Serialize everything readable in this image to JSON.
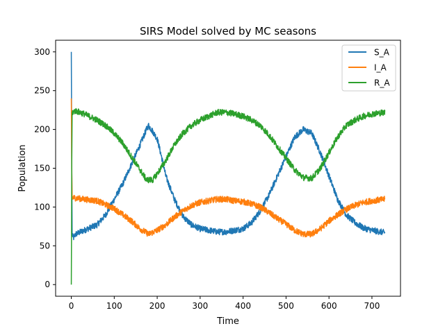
{
  "chart_data": {
    "type": "line",
    "title": "SIRS Model solved by MC seasons",
    "xlabel": "Time",
    "ylabel": "Population",
    "xlim": [
      -36.5,
      766.5
    ],
    "ylim": [
      -15,
      315
    ],
    "xticks": [
      0,
      100,
      200,
      300,
      400,
      500,
      600,
      700
    ],
    "yticks": [
      0,
      50,
      100,
      150,
      200,
      250,
      300
    ],
    "grid": false,
    "legend_position": "top-right",
    "noise_amplitude": 4,
    "series": [
      {
        "name": "S_A",
        "color": "#1f77b4",
        "points": [
          [
            0,
            300
          ],
          [
            0.5,
            240
          ],
          [
            1,
            165
          ],
          [
            2,
            65
          ],
          [
            5,
            60
          ],
          [
            10,
            65
          ],
          [
            30,
            70
          ],
          [
            60,
            77
          ],
          [
            80,
            90
          ],
          [
            100,
            110
          ],
          [
            120,
            130
          ],
          [
            140,
            155
          ],
          [
            160,
            180
          ],
          [
            175,
            200
          ],
          [
            180,
            205
          ],
          [
            190,
            197
          ],
          [
            200,
            188
          ],
          [
            210,
            165
          ],
          [
            220,
            140
          ],
          [
            230,
            125
          ],
          [
            240,
            110
          ],
          [
            260,
            88
          ],
          [
            280,
            77
          ],
          [
            300,
            72
          ],
          [
            320,
            70
          ],
          [
            340,
            68
          ],
          [
            360,
            68
          ],
          [
            380,
            70
          ],
          [
            400,
            72
          ],
          [
            420,
            80
          ],
          [
            440,
            95
          ],
          [
            460,
            115
          ],
          [
            480,
            140
          ],
          [
            500,
            165
          ],
          [
            520,
            190
          ],
          [
            540,
            200
          ],
          [
            560,
            195
          ],
          [
            580,
            170
          ],
          [
            600,
            140
          ],
          [
            620,
            110
          ],
          [
            640,
            90
          ],
          [
            660,
            80
          ],
          [
            680,
            73
          ],
          [
            700,
            70
          ],
          [
            730,
            67
          ]
        ]
      },
      {
        "name": "I_A",
        "color": "#ff7f0e",
        "points": [
          [
            0,
            240
          ],
          [
            0.5,
            200
          ],
          [
            1,
            150
          ],
          [
            2,
            112
          ],
          [
            5,
            112
          ],
          [
            30,
            110
          ],
          [
            60,
            108
          ],
          [
            80,
            103
          ],
          [
            100,
            98
          ],
          [
            120,
            90
          ],
          [
            140,
            82
          ],
          [
            160,
            72
          ],
          [
            180,
            65
          ],
          [
            200,
            70
          ],
          [
            220,
            77
          ],
          [
            240,
            87
          ],
          [
            260,
            95
          ],
          [
            280,
            102
          ],
          [
            300,
            106
          ],
          [
            320,
            108
          ],
          [
            340,
            110
          ],
          [
            360,
            110
          ],
          [
            380,
            108
          ],
          [
            400,
            107
          ],
          [
            420,
            104
          ],
          [
            440,
            100
          ],
          [
            460,
            93
          ],
          [
            480,
            85
          ],
          [
            500,
            78
          ],
          [
            520,
            70
          ],
          [
            540,
            65
          ],
          [
            560,
            65
          ],
          [
            580,
            72
          ],
          [
            600,
            82
          ],
          [
            620,
            90
          ],
          [
            640,
            97
          ],
          [
            660,
            102
          ],
          [
            680,
            106
          ],
          [
            700,
            108
          ],
          [
            730,
            110
          ]
        ]
      },
      {
        "name": "R_A",
        "color": "#2ca02c",
        "points": [
          [
            0,
            0
          ],
          [
            0.5,
            60
          ],
          [
            1,
            150
          ],
          [
            2,
            222
          ],
          [
            10,
            224
          ],
          [
            30,
            220
          ],
          [
            60,
            212
          ],
          [
            80,
            205
          ],
          [
            100,
            195
          ],
          [
            120,
            182
          ],
          [
            140,
            165
          ],
          [
            160,
            148
          ],
          [
            175,
            135
          ],
          [
            190,
            135
          ],
          [
            200,
            143
          ],
          [
            220,
            160
          ],
          [
            240,
            180
          ],
          [
            260,
            195
          ],
          [
            280,
            205
          ],
          [
            300,
            212
          ],
          [
            320,
            217
          ],
          [
            340,
            222
          ],
          [
            360,
            222
          ],
          [
            380,
            220
          ],
          [
            400,
            217
          ],
          [
            420,
            212
          ],
          [
            440,
            205
          ],
          [
            460,
            193
          ],
          [
            480,
            178
          ],
          [
            500,
            163
          ],
          [
            520,
            148
          ],
          [
            540,
            138
          ],
          [
            560,
            137
          ],
          [
            580,
            150
          ],
          [
            600,
            170
          ],
          [
            620,
            190
          ],
          [
            640,
            205
          ],
          [
            660,
            212
          ],
          [
            680,
            217
          ],
          [
            700,
            220
          ],
          [
            730,
            222
          ]
        ]
      }
    ]
  }
}
